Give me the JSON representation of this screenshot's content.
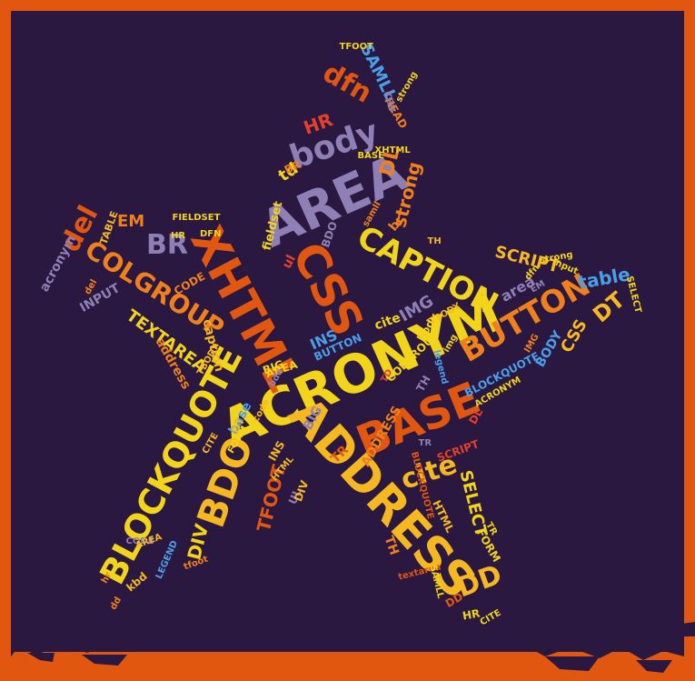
{
  "palette": {
    "frame": "#e2570f",
    "background": "#2a1840",
    "orange": "#f0801c",
    "dark_orange": "#e2570f",
    "yellow": "#f2d41a",
    "gold": "#f5b820",
    "lilac": "#8e80b4",
    "blue": "#4aa0e8",
    "red": "#e6402a",
    "pink": "#c94a7a"
  },
  "words": [
    {
      "text": "ACRONYM",
      "color": "#f2d41a"
    },
    {
      "text": "ADDRESS",
      "color": "#f5b820"
    },
    {
      "text": "BLOCKQUOTE",
      "color": "#f2d41a"
    },
    {
      "text": "XHTML",
      "color": "#e2570f"
    },
    {
      "text": "AREA",
      "color": "#8e80b4"
    },
    {
      "text": "CSS",
      "color": "#e2570f"
    },
    {
      "text": "BASE",
      "color": "#e2570f"
    },
    {
      "text": "BDO",
      "color": "#f5b820"
    },
    {
      "text": "CAPTION",
      "color": "#f2d41a"
    },
    {
      "text": "BUTTON",
      "color": "#f0801c"
    },
    {
      "text": "COLGROUP",
      "color": "#f0801c"
    },
    {
      "text": "body",
      "color": "#8e80b4"
    },
    {
      "text": "BR",
      "color": "#8e80b4"
    },
    {
      "text": "cite",
      "color": "#f5b820"
    },
    {
      "text": "DD",
      "color": "#f5b820"
    },
    {
      "text": "dfn",
      "color": "#e2570f"
    },
    {
      "text": "del",
      "color": "#e2570f"
    },
    {
      "text": "EM",
      "color": "#f0801c"
    },
    {
      "text": "strong",
      "color": "#f0801c"
    },
    {
      "text": "DL",
      "color": "#f0801c"
    },
    {
      "text": "HR",
      "color": "#e6402a"
    },
    {
      "text": "SAMLL",
      "color": "#4aa0e8"
    },
    {
      "text": "SCRIPT",
      "color": "#f5b820"
    },
    {
      "text": "table",
      "color": "#4aa0e8"
    },
    {
      "text": "DT",
      "color": "#f5b820"
    },
    {
      "text": "TEXTAREA",
      "color": "#f2d41a"
    },
    {
      "text": "DIV",
      "color": "#f2d41a"
    },
    {
      "text": "TFOOT",
      "color": "#e2570f"
    },
    {
      "text": "SELECT",
      "color": "#f2d41a"
    },
    {
      "text": "INPUT",
      "color": "#8e80b4"
    },
    {
      "text": "acronym",
      "color": "#8e80b4"
    },
    {
      "text": "IMG",
      "color": "#8e80b4"
    },
    {
      "text": "area",
      "color": "#8e80b4"
    },
    {
      "text": "CSS",
      "color": "#f5b820"
    },
    {
      "text": "BODY",
      "color": "#4aa0e8"
    },
    {
      "text": "td",
      "color": "#f2d41a"
    },
    {
      "text": "COLGROUP",
      "color": "#f2d41a"
    },
    {
      "text": "BLOCKQUOTE",
      "color": "#4aa0e8"
    },
    {
      "text": "INS",
      "color": "#4aa0e8"
    },
    {
      "text": "BIG",
      "color": "#8e80b4"
    },
    {
      "text": "base",
      "color": "#4aa0e8"
    },
    {
      "text": "caption",
      "color": "#f5b820"
    },
    {
      "text": "br",
      "color": "#f0801c"
    },
    {
      "text": "ul",
      "color": "#e6402a"
    },
    {
      "text": "TABLE",
      "color": "#f5b820"
    },
    {
      "text": "FIELDSET",
      "color": "#f2d41a"
    },
    {
      "text": "fieldset",
      "color": "#f2d41a"
    },
    {
      "text": "DFN",
      "color": "#f2d41a"
    },
    {
      "text": "CODE",
      "color": "#f0801c"
    },
    {
      "text": "cite",
      "color": "#f2d41a"
    },
    {
      "text": "TBODY",
      "color": "#f5b820"
    },
    {
      "text": "HEAD",
      "color": "#f0801c"
    },
    {
      "text": "KBD",
      "color": "#8e80b4"
    },
    {
      "text": "TFOOT",
      "color": "#f2d41a"
    },
    {
      "text": "XHTML",
      "color": "#f2d41a"
    },
    {
      "text": "FORM",
      "color": "#f2d41a"
    },
    {
      "text": "HTML",
      "color": "#f5b820"
    },
    {
      "text": "TR",
      "color": "#f2d41a"
    },
    {
      "text": "HR",
      "color": "#f2d41a"
    },
    {
      "text": "textarea",
      "color": "#e2570f"
    },
    {
      "text": "SCRIPT",
      "color": "#e6402a"
    },
    {
      "text": "LEGEND",
      "color": "#4aa0e8"
    },
    {
      "text": "tfoot",
      "color": "#f0801c"
    },
    {
      "text": "kbd",
      "color": "#f5b820"
    },
    {
      "text": "TH",
      "color": "#f0801c"
    },
    {
      "text": "DT",
      "color": "#f5b820"
    },
    {
      "text": "dd",
      "color": "#f0801c"
    },
    {
      "text": "BDO",
      "color": "#8e80b4"
    },
    {
      "text": "UL",
      "color": "#8e80b4"
    },
    {
      "text": "DL",
      "color": "#e6402a"
    },
    {
      "text": "TR",
      "color": "#e2570f"
    },
    {
      "text": "BIG",
      "color": "#f2d41a"
    },
    {
      "text": "AREA",
      "color": "#f2d41a"
    },
    {
      "text": "BUTTON",
      "color": "#4aa0e8"
    },
    {
      "text": "CITE",
      "color": "#f2d41a"
    },
    {
      "text": "IMG",
      "color": "#f0801c"
    },
    {
      "text": "DIV",
      "color": "#f5b820"
    },
    {
      "text": "HTML",
      "color": "#f5b820"
    },
    {
      "text": "input",
      "color": "#f2d41a"
    },
    {
      "text": "strong",
      "color": "#f2d41a"
    },
    {
      "text": "SELECT",
      "color": "#f2d41a"
    },
    {
      "text": "del",
      "color": "#f0801c"
    },
    {
      "text": "dfn",
      "color": "#f2d41a"
    },
    {
      "text": "EM",
      "color": "#8e80b4"
    },
    {
      "text": "code",
      "color": "#f5b820"
    },
    {
      "text": "samll",
      "color": "#f0801c"
    },
    {
      "text": "BASE",
      "color": "#f2d41a"
    },
    {
      "text": "TD",
      "color": "#e6402a"
    },
    {
      "text": "address",
      "color": "#f0801c"
    },
    {
      "text": "BR",
      "color": "#f0801c"
    },
    {
      "text": "legend",
      "color": "#4aa0e8"
    },
    {
      "text": "bdo",
      "color": "#8e80b4"
    },
    {
      "text": "TBODY",
      "color": "#f5b820"
    },
    {
      "text": "ACRONYM",
      "color": "#f2d41a"
    },
    {
      "text": "TH",
      "color": "#f5b820"
    },
    {
      "text": "img",
      "color": "#f2d41a"
    },
    {
      "text": "strong",
      "color": "#f2d41a"
    },
    {
      "text": "BLOCKQUOTE",
      "color": "#e2570f"
    },
    {
      "text": "SAMLL",
      "color": "#f2d41a"
    },
    {
      "text": "DD",
      "color": "#e2570f"
    },
    {
      "text": "HR",
      "color": "#f2d41a"
    },
    {
      "text": "CITE",
      "color": "#f5b820"
    },
    {
      "text": "TR",
      "color": "#8e80b4"
    },
    {
      "text": "FORM",
      "color": "#f2d41a"
    },
    {
      "text": "CODE",
      "color": "#8e80b4"
    },
    {
      "text": "AREA",
      "color": "#f5b820"
    },
    {
      "text": "hr",
      "color": "#f0801c"
    },
    {
      "text": "INS",
      "color": "#f5b820"
    },
    {
      "text": "TH",
      "color": "#8e80b4"
    },
    {
      "text": "ADDRESS",
      "color": "#f0801c"
    },
    {
      "text": "body",
      "color": "#f2d41a"
    }
  ]
}
